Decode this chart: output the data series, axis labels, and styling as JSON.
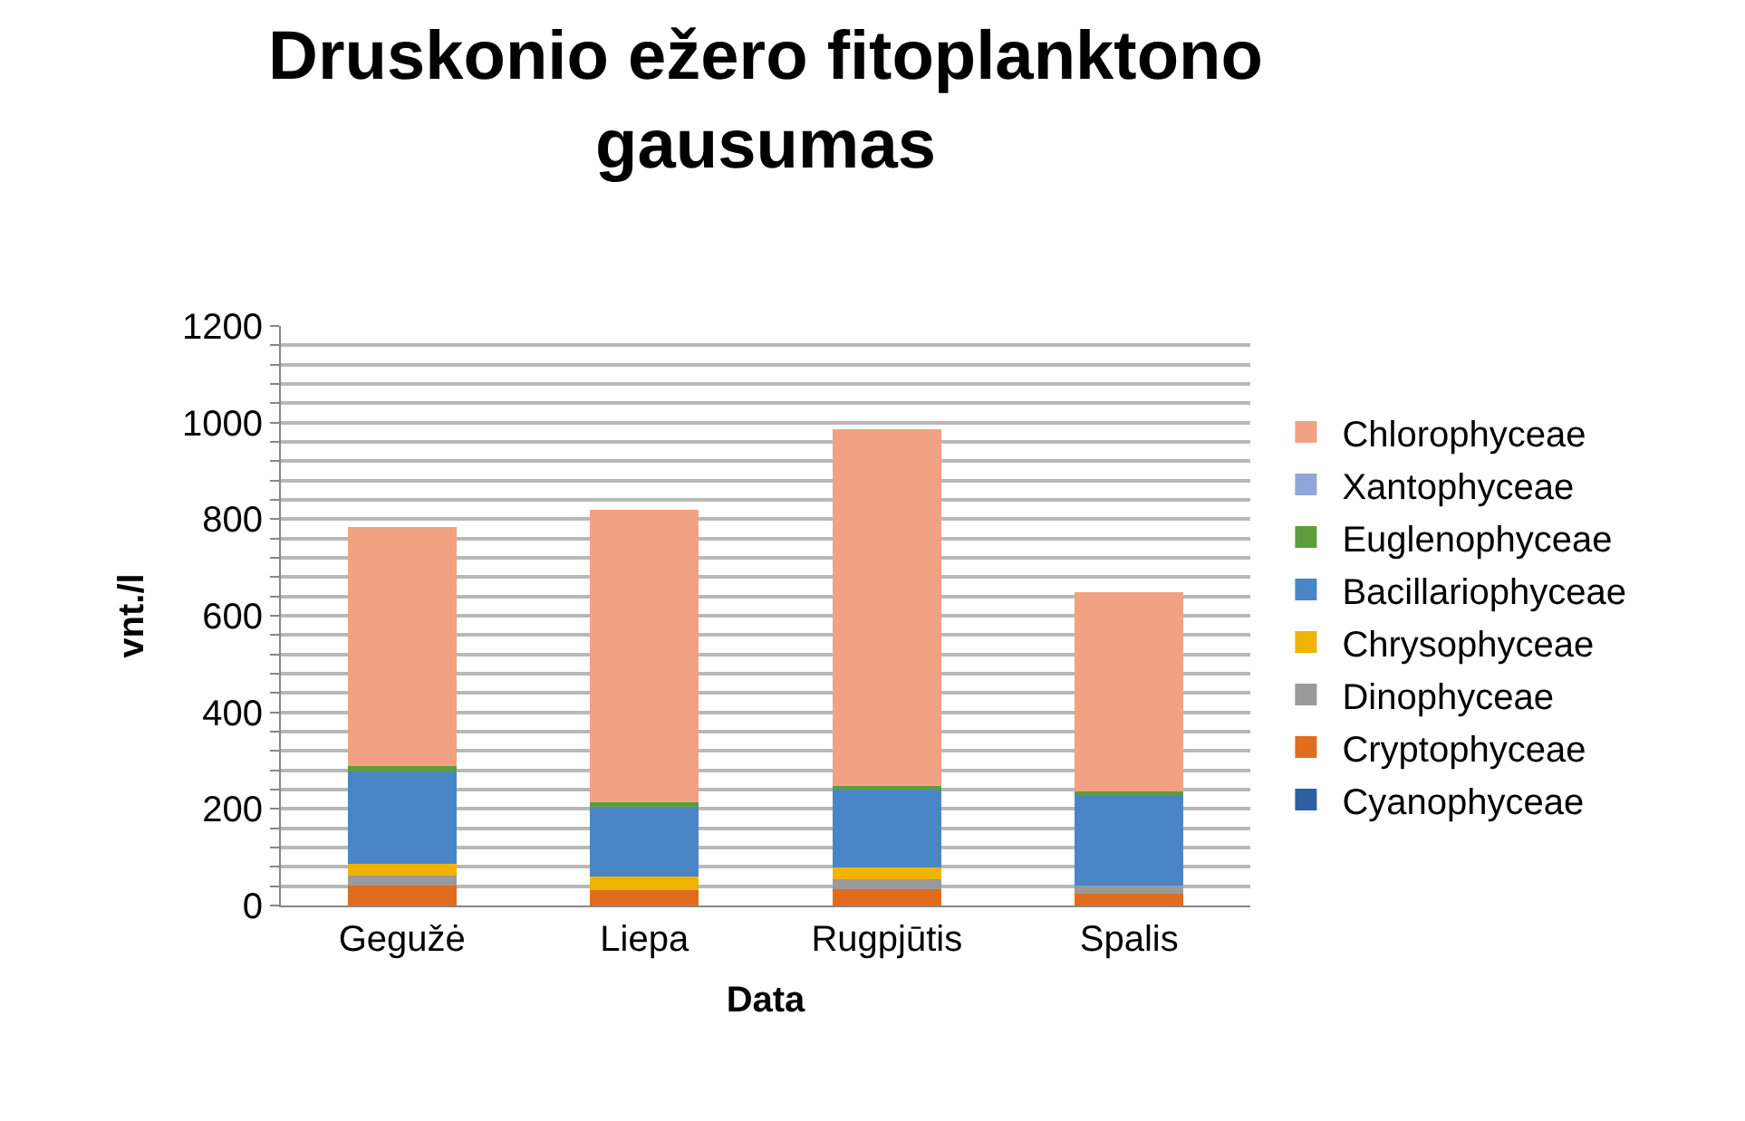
{
  "chart_data": {
    "type": "bar",
    "stacked": true,
    "title": "Druskonio ežero fitoplanktono gausumas",
    "xlabel": "Data",
    "ylabel": "vnt./l",
    "categories": [
      "Gegužė",
      "Liepa",
      "Rugpjūtis",
      "Spalis"
    ],
    "series": [
      {
        "name": "Cyanophyceae",
        "color": "#2e5fa3",
        "values": [
          null,
          null,
          null,
          null
        ]
      },
      {
        "name": "Cryptophyceae",
        "color": "#e06c1e",
        "values": [
          41,
          31,
          34,
          25
        ]
      },
      {
        "name": "Dinophyceae",
        "color": "#9a9a9a",
        "values": [
          20,
          0,
          20,
          17
        ]
      },
      {
        "name": "Chrysophyceae",
        "color": "#f0b400",
        "values": [
          25,
          29,
          25,
          0
        ]
      },
      {
        "name": "Bacillariophyceae",
        "color": "#4a86c5",
        "values": [
          195,
          146,
          161,
          189
        ]
      },
      {
        "name": "Euglenophyceae",
        "color": "#5c9e3c",
        "values": [
          7,
          7,
          7,
          6
        ]
      },
      {
        "name": "Xantophyceae",
        "color": "#8fa6d8",
        "values": [
          null,
          null,
          null,
          null
        ]
      },
      {
        "name": "Chlorophyceae",
        "color": "#f2a283",
        "values": [
          495,
          607,
          740,
          412
        ]
      }
    ],
    "ylim": [
      0,
      1200
    ],
    "yticks": [
      0,
      {
        "value": 40,
        "label": null
      },
      {
        "value": 80,
        "label": null
      },
      {
        "value": 120,
        "label": null
      },
      {
        "value": 160,
        "label": null
      },
      200,
      {
        "value": 240,
        "label": null
      },
      {
        "value": 280,
        "label": null
      },
      {
        "value": 320,
        "label": null
      },
      {
        "value": 360,
        "label": null
      },
      400,
      {
        "value": 440,
        "label": null
      },
      {
        "value": 480,
        "label": null
      },
      {
        "value": 520,
        "label": null
      },
      {
        "value": 560,
        "label": null
      },
      600,
      {
        "value": 640,
        "label": null
      },
      {
        "value": 680,
        "label": null
      },
      {
        "value": 720,
        "label": null
      },
      {
        "value": 760,
        "label": null
      },
      800,
      {
        "value": 840,
        "label": null
      },
      {
        "value": 880,
        "label": null
      },
      {
        "value": 920,
        "label": null
      },
      {
        "value": 960,
        "label": null
      },
      1000,
      {
        "value": 1040,
        "label": null
      },
      {
        "value": 1080,
        "label": null
      },
      {
        "value": 1120,
        "label": null
      },
      {
        "value": 1160,
        "label": null
      },
      1200
    ],
    "grid": true,
    "legend": "right"
  }
}
